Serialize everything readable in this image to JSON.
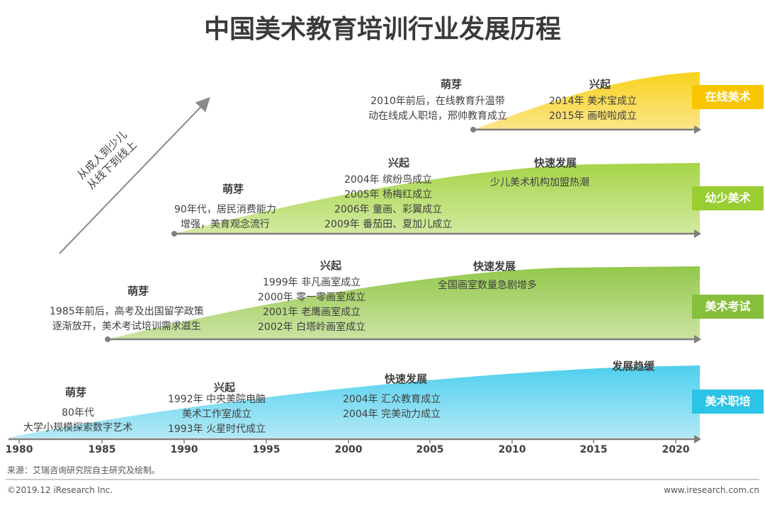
{
  "title": "中国美术教育培训行业发展历程",
  "diagonal": {
    "line1": "从成人到少儿",
    "line2": "从线下到线上"
  },
  "colors": {
    "online": "#f7c600",
    "kids": "#9acd32",
    "exam": "#86bf3b",
    "training": "#2bc3e6"
  },
  "axis": {
    "years": [
      "1980",
      "1985",
      "1990",
      "1995",
      "2000",
      "2005",
      "2010",
      "2015",
      "2020"
    ]
  },
  "tracks": {
    "online": {
      "label": "在线美术",
      "sprout": {
        "title": "萌芽",
        "lines": [
          "2010年前后，在线教育升温带",
          "动在线成人职培，邢帅教育成立"
        ]
      },
      "rise": {
        "title": "兴起",
        "lines": [
          "2014年 美术宝成立",
          "2015年 画啦啦成立"
        ]
      }
    },
    "kids": {
      "label": "幼少美术",
      "sprout": {
        "title": "萌芽",
        "lines": [
          "90年代，居民消费能力",
          "增强，美育观念流行"
        ]
      },
      "rise": {
        "title": "兴起",
        "lines": [
          "2004年 缤纷鸟成立",
          "2005年 杨梅红成立",
          "2006年 童画、彩翼成立",
          "2009年 番茄田、夏加儿成立"
        ]
      },
      "fast": {
        "title": "快速发展",
        "lines": [
          "少儿美术机构加盟热潮"
        ]
      }
    },
    "exam": {
      "label": "美术考试",
      "sprout": {
        "title": "萌芽",
        "lines": [
          "1985年前后，高考及出国留学政策",
          "逐渐放开，美术考试培训需求滋生"
        ]
      },
      "rise": {
        "title": "兴起",
        "lines": [
          "1999年 非凡画室成立",
          "2000年 零一零画室成立",
          "2001年 老鹰画室成立",
          "2002年 白塔岭画室成立"
        ]
      },
      "fast": {
        "title": "快速发展",
        "lines": [
          "全国画室数量急剧增多"
        ]
      }
    },
    "training": {
      "label": "美术职培",
      "sprout": {
        "title": "萌芽",
        "lines": [
          "80年代",
          "大学小规模探索数字艺术"
        ]
      },
      "rise": {
        "title": "兴起",
        "lines": [
          "1992年 中央美院电脑",
          "美术工作室成立",
          "1993年 火星时代成立"
        ]
      },
      "fast": {
        "title": "快速发展",
        "lines": [
          "2004年 汇众教育成立",
          "2004年 完美动力成立"
        ]
      },
      "slow": {
        "title": "发展趋缓"
      }
    }
  },
  "footer": {
    "source": "来源：艾瑞咨询研究院自主研究及绘制。",
    "copyright": "©2019.12 iResearch Inc.",
    "url": "www.iresearch.com.cn"
  }
}
